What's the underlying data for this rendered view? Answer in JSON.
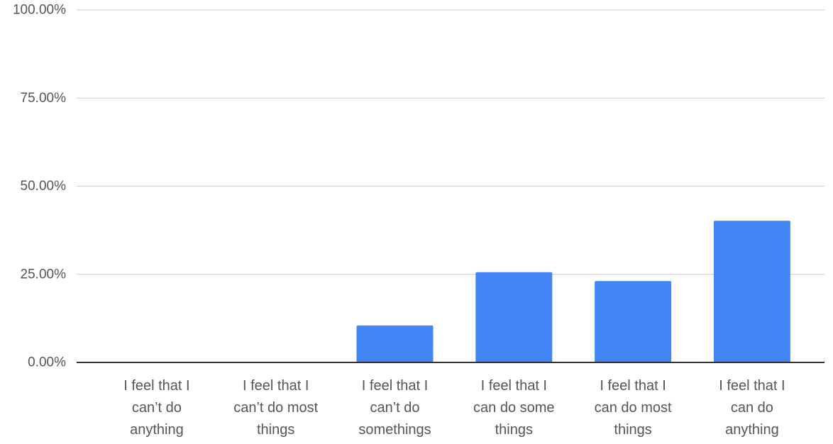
{
  "chart_data": {
    "type": "bar",
    "title": "",
    "xlabel": "",
    "ylabel": "",
    "categories": [
      [
        "I feel that I",
        "can’t do",
        "anything"
      ],
      [
        "I feel that I",
        "can’t do most",
        "things"
      ],
      [
        "I feel that I",
        "can’t do",
        "somethings"
      ],
      [
        "I feel that I",
        "can do some",
        "things"
      ],
      [
        "I feel that I",
        "can do most",
        "things"
      ],
      [
        "I feel that I",
        "can do",
        "anything"
      ]
    ],
    "values": [
      0,
      0,
      10.5,
      25.6,
      23.1,
      40.2
    ],
    "ylim": [
      0,
      100
    ],
    "yticks": [
      0,
      25,
      50,
      75,
      100
    ],
    "ytick_labels": [
      "0.00%",
      "25.00%",
      "50.00%",
      "75.00%",
      "100.00%"
    ],
    "grid": true,
    "legend": "none",
    "bar_color": "#4285F4",
    "grid_color": "#cccccc",
    "axis_color": "#333333",
    "label_color": "#555555"
  }
}
